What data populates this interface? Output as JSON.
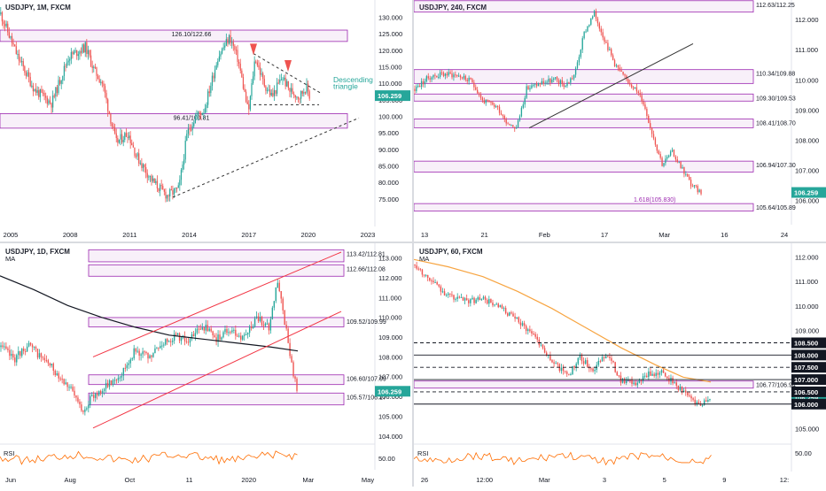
{
  "colors": {
    "up": "#26a69a",
    "down": "#ef5350",
    "zone": "#9c27b0",
    "price_badge": "#26a69a",
    "ma_black": "#131722",
    "ma_orange": "#f7a440",
    "rsi": "#ff6d00",
    "triangle_text": "#26a69a",
    "channel": "#f23645"
  },
  "chart_data": [
    {
      "id": "monthly",
      "type": "candlestick",
      "title": "USDJPY, 1M, FXCM",
      "x_labels": [
        "2005",
        "2008",
        "2011",
        "2014",
        "2017",
        "2020",
        "2023"
      ],
      "y_labels": [
        "75.000",
        "80.000",
        "85.000",
        "90.000",
        "95.000",
        "100.000",
        "105.000",
        "110.000",
        "115.000",
        "120.000",
        "125.000",
        "130.000"
      ],
      "ylim": [
        72,
        132
      ],
      "price_badge": "106.259",
      "zones": [
        {
          "label": "126.10/122.66",
          "low": 122.66,
          "high": 126.1
        },
        {
          "label": "96.41/100.81",
          "low": 96.41,
          "high": 100.81
        }
      ],
      "annotation": [
        "Descending",
        "triangle"
      ],
      "path": [
        [
          2002,
          131
        ],
        [
          2003,
          118
        ],
        [
          2004,
          108
        ],
        [
          2005,
          104
        ],
        [
          2006,
          118
        ],
        [
          2007,
          121
        ],
        [
          2007.5,
          114
        ],
        [
          2008,
          110
        ],
        [
          2008.8,
          92
        ],
        [
          2009.5,
          95
        ],
        [
          2010,
          88
        ],
        [
          2011,
          80
        ],
        [
          2011.8,
          76
        ],
        [
          2012.5,
          78
        ],
        [
          2013,
          95
        ],
        [
          2013.5,
          100
        ],
        [
          2014,
          102
        ],
        [
          2014.8,
          118
        ],
        [
          2015.5,
          124
        ],
        [
          2016,
          117
        ],
        [
          2016.6,
          101
        ],
        [
          2017,
          118
        ],
        [
          2017.5,
          110
        ],
        [
          2018,
          106
        ],
        [
          2018.6,
          112
        ],
        [
          2019,
          108
        ],
        [
          2019.6,
          106
        ],
        [
          2020,
          109
        ],
        [
          2020.2,
          106.26
        ]
      ]
    },
    {
      "id": "h4",
      "type": "candlestick",
      "title": "USDJPY, 240, FXCM",
      "x_labels": [
        "13",
        "21",
        "Feb",
        "17",
        "Mar",
        "16",
        "24"
      ],
      "y_labels": [
        "106.000",
        "107.000",
        "108.000",
        "109.000",
        "110.000",
        "111.000",
        "112.000"
      ],
      "ylim": [
        105.6,
        112.3
      ],
      "price_badge": "106.259",
      "zones": [
        {
          "label": "112.63/112.25",
          "low": 112.25,
          "high": 112.63
        },
        {
          "label": "110.34/109.88",
          "low": 109.88,
          "high": 110.34
        },
        {
          "label": "109.30/109.53",
          "low": 109.3,
          "high": 109.53
        },
        {
          "label": "108.41/108.70",
          "low": 108.41,
          "high": 108.7
        },
        {
          "label": "106.94/107.30",
          "low": 106.94,
          "high": 107.3
        },
        {
          "label": "105.64/105.89",
          "low": 105.64,
          "high": 105.89
        }
      ],
      "fib_label": "1.618(105.830)",
      "path": [
        [
          0,
          109.7
        ],
        [
          3,
          110.1
        ],
        [
          6,
          110.2
        ],
        [
          9,
          110.15
        ],
        [
          12,
          109.9
        ],
        [
          14,
          109.3
        ],
        [
          17,
          109.1
        ],
        [
          19,
          108.6
        ],
        [
          21,
          108.4
        ],
        [
          23,
          109.7
        ],
        [
          26,
          109.9
        ],
        [
          29,
          110.0
        ],
        [
          31,
          109.8
        ],
        [
          33,
          110.2
        ],
        [
          35,
          111.6
        ],
        [
          37,
          112.2
        ],
        [
          39,
          111.4
        ],
        [
          41,
          110.6
        ],
        [
          43,
          110.1
        ],
        [
          45,
          109.8
        ],
        [
          47,
          109.3
        ],
        [
          49,
          108.2
        ],
        [
          51,
          107.2
        ],
        [
          53,
          107.6
        ],
        [
          55,
          107.1
        ],
        [
          57,
          106.5
        ],
        [
          59,
          106.26
        ]
      ]
    },
    {
      "id": "daily",
      "type": "candlestick",
      "title": "USDJPY, 1D, FXCM",
      "x_labels": [
        "Jun",
        "Aug",
        "Oct",
        "11",
        "2020",
        "Mar",
        "May"
      ],
      "y_labels": [
        "104.000",
        "105.000",
        "106.000",
        "107.000",
        "108.000",
        "109.000",
        "110.000",
        "111.000",
        "112.000",
        "113.000"
      ],
      "ylim": [
        103.9,
        113.3
      ],
      "price_badge": "106.259",
      "legend": "MA",
      "zones": [
        {
          "label": "113.42/112.81",
          "low": 112.81,
          "high": 113.42
        },
        {
          "label": "112.66/112.08",
          "low": 112.08,
          "high": 112.66
        },
        {
          "label": "109.52/109.99",
          "low": 109.52,
          "high": 109.99
        },
        {
          "label": "106.60/107.09",
          "low": 106.6,
          "high": 107.09
        },
        {
          "label": "105.57/106.17",
          "low": 105.57,
          "high": 106.17
        }
      ],
      "rsi_label": "RSI",
      "rsi_level": "50.00",
      "path": [
        [
          0,
          108.5
        ],
        [
          4,
          107.9
        ],
        [
          8,
          108.6
        ],
        [
          12,
          108.0
        ],
        [
          16,
          107.3
        ],
        [
          20,
          106.6
        ],
        [
          24,
          105.3
        ],
        [
          28,
          106.1
        ],
        [
          32,
          106.6
        ],
        [
          36,
          107.2
        ],
        [
          40,
          108.4
        ],
        [
          44,
          107.9
        ],
        [
          48,
          108.7
        ],
        [
          52,
          109.1
        ],
        [
          56,
          108.8
        ],
        [
          60,
          109.6
        ],
        [
          64,
          108.9
        ],
        [
          68,
          109.4
        ],
        [
          72,
          108.9
        ],
        [
          76,
          110.0
        ],
        [
          80,
          109.5
        ],
        [
          82,
          111.9
        ],
        [
          84,
          110.2
        ],
        [
          86,
          108.0
        ],
        [
          88,
          106.26
        ]
      ],
      "ma": [
        [
          0,
          112.1
        ],
        [
          10,
          111.4
        ],
        [
          20,
          110.6
        ],
        [
          30,
          110.0
        ],
        [
          40,
          109.5
        ],
        [
          50,
          109.1
        ],
        [
          60,
          108.9
        ],
        [
          70,
          108.7
        ],
        [
          80,
          108.5
        ],
        [
          88,
          108.3
        ]
      ]
    },
    {
      "id": "h1",
      "type": "candlestick",
      "title": "USDJPY, 60, FXCM",
      "x_labels": [
        "26",
        "12:00",
        "Mar",
        "3",
        "5",
        "9",
        "12:"
      ],
      "y_labels": [
        "105.000",
        "106.000",
        "107.000",
        "108.000",
        "109.000",
        "110.000",
        "111.000",
        "112.000"
      ],
      "ylim": [
        104.8,
        112.2
      ],
      "price_badge": "106.259",
      "legend": "MA",
      "zone": {
        "label": "106.77/106.94",
        "low": 106.77,
        "high": 106.94
      },
      "levels": [
        "108.500",
        "108.000",
        "107.500",
        "107.000",
        "106.500",
        "106.000"
      ],
      "rsi_label": "RSI",
      "rsi_level": "50.00",
      "path": [
        [
          0,
          111.7
        ],
        [
          5,
          111.0
        ],
        [
          10,
          110.4
        ],
        [
          15,
          110.2
        ],
        [
          20,
          110.3
        ],
        [
          25,
          109.9
        ],
        [
          30,
          109.4
        ],
        [
          35,
          108.8
        ],
        [
          40,
          107.7
        ],
        [
          45,
          107.2
        ],
        [
          48,
          107.9
        ],
        [
          52,
          107.4
        ],
        [
          56,
          108.1
        ],
        [
          60,
          107.0
        ],
        [
          64,
          106.8
        ],
        [
          68,
          107.2
        ],
        [
          72,
          107.3
        ],
        [
          76,
          106.8
        ],
        [
          80,
          106.3
        ],
        [
          83,
          106.0
        ],
        [
          86,
          106.26
        ]
      ],
      "ma": [
        [
          0,
          111.9
        ],
        [
          10,
          111.6
        ],
        [
          20,
          111.2
        ],
        [
          30,
          110.6
        ],
        [
          40,
          109.9
        ],
        [
          50,
          109.1
        ],
        [
          60,
          108.3
        ],
        [
          70,
          107.6
        ],
        [
          78,
          107.1
        ],
        [
          86,
          106.9
        ]
      ]
    }
  ]
}
